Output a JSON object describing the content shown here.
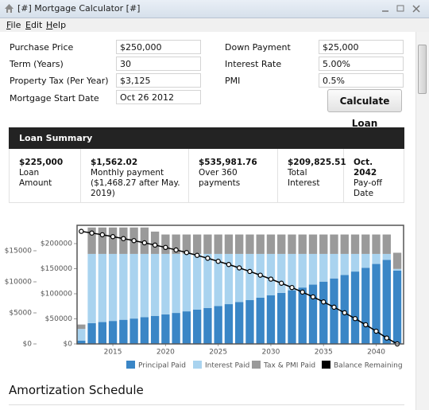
{
  "window": {
    "title": "[#] Mortgage Calculator [#]",
    "menu": [
      "File",
      "Edit",
      "Help"
    ]
  },
  "form": {
    "fields": [
      {
        "label": "Purchase Price",
        "value": "$250,000"
      },
      {
        "label": "Down Payment",
        "value": "$25,000"
      },
      {
        "label": "Term (Years)",
        "value": "30"
      },
      {
        "label": "Interest Rate",
        "value": "5.00%"
      },
      {
        "label": "Property Tax (Per Year)",
        "value": "$3,125"
      },
      {
        "label": "PMI",
        "value": "0.5%"
      },
      {
        "label": "Mortgage Start Date",
        "value": "Oct 26 2012"
      }
    ],
    "button": "Calculate Loan"
  },
  "summary": {
    "title": "Loan Summary",
    "cells": [
      {
        "value": "$225,000",
        "label": "Loan Amount"
      },
      {
        "value": "$1,562.02",
        "label": "Monthly payment ($1,468.27 after May. 2019)"
      },
      {
        "value": "$535,981.76",
        "label": "Over 360 payments"
      },
      {
        "value": "$209,825.51",
        "label": "Total Interest"
      },
      {
        "value": "Oct. 2042",
        "label": "Pay-off Date"
      }
    ]
  },
  "chart_data": {
    "type": "bar",
    "stacked": true,
    "x": [
      2012,
      2013,
      2014,
      2015,
      2016,
      2017,
      2018,
      2019,
      2020,
      2021,
      2022,
      2023,
      2024,
      2025,
      2026,
      2027,
      2028,
      2029,
      2030,
      2031,
      2032,
      2033,
      2034,
      2035,
      2036,
      2037,
      2038,
      2039,
      2040,
      2041,
      2042
    ],
    "series": [
      {
        "name": "Principal Paid",
        "color": "#3a86c6",
        "values": [
          542,
          3347,
          3519,
          3698,
          3888,
          4086,
          4297,
          4517,
          4747,
          4990,
          5244,
          5514,
          5795,
          6091,
          6403,
          6731,
          7075,
          7438,
          7818,
          8218,
          8638,
          9080,
          9546,
          10033,
          10546,
          11087,
          11653,
          12249,
          12876,
          13535,
          11799
        ]
      },
      {
        "name": "Interest Paid",
        "color": "#a9d3ef",
        "values": [
          1874,
          11147,
          10975,
          10796,
          10606,
          10408,
          10197,
          9977,
          9747,
          9504,
          9250,
          8980,
          8699,
          8403,
          8091,
          7763,
          7419,
          7056,
          6676,
          6276,
          5856,
          5414,
          4948,
          4461,
          3948,
          3407,
          2841,
          2245,
          1618,
          959,
          279
        ]
      },
      {
        "name": "Tax & PMI Paid",
        "color": "#9a9a9a",
        "values": [
          708,
          4250,
          4250,
          4250,
          4250,
          4250,
          4250,
          3594,
          3125,
          3125,
          3125,
          3125,
          3125,
          3125,
          3125,
          3125,
          3125,
          3125,
          3125,
          3125,
          3125,
          3125,
          3125,
          3125,
          3125,
          3125,
          3125,
          3125,
          3125,
          3125,
          2604
        ]
      },
      {
        "name": "Balance Remaining",
        "color": "#000000",
        "type": "line",
        "axis": "y2",
        "values": [
          224458,
          221111,
          217592,
          213894,
          210006,
          205920,
          201623,
          197106,
          192359,
          187369,
          182125,
          176611,
          170816,
          164725,
          158322,
          151591,
          144516,
          137078,
          129260,
          121042,
          112404,
          103324,
          93778,
          83745,
          73199,
          62112,
          50459,
          38210,
          25334,
          11799,
          0
        ]
      }
    ],
    "xlim": [
      2011.6,
      2042.6
    ],
    "xticks": [
      2015,
      2020,
      2025,
      2030,
      2035,
      2040
    ],
    "ylim": [
      0,
      19100
    ],
    "yticks": [
      {
        "value": 0,
        "label": "$0"
      },
      {
        "value": 5000,
        "label": "$5000"
      },
      {
        "value": 10000,
        "label": "$10000"
      },
      {
        "value": 15000,
        "label": "$15000"
      }
    ],
    "y2lim": [
      0,
      236500
    ],
    "y2ticks": [
      {
        "value": 0,
        "label": "$0"
      },
      {
        "value": 50000,
        "label": "$50000"
      },
      {
        "value": 100000,
        "label": "$100000"
      },
      {
        "value": 150000,
        "label": "$150000"
      },
      {
        "value": 200000,
        "label": "$200000"
      }
    ],
    "legend": "bottom"
  },
  "schedule": {
    "title": "Amortization Schedule"
  }
}
